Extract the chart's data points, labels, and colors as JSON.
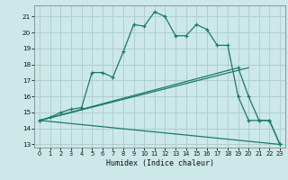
{
  "xlabel": "Humidex (Indice chaleur)",
  "background_color": "#cce8e8",
  "grid_color": "#aacccc",
  "line_color": "#1a7a6a",
  "xlim": [
    -0.5,
    23.5
  ],
  "ylim": [
    12.8,
    21.7
  ],
  "yticks": [
    13,
    14,
    15,
    16,
    17,
    18,
    19,
    20,
    21
  ],
  "xticks": [
    0,
    1,
    2,
    3,
    4,
    5,
    6,
    7,
    8,
    9,
    10,
    11,
    12,
    13,
    14,
    15,
    16,
    17,
    18,
    19,
    20,
    21,
    22,
    23
  ],
  "series1_x": [
    0,
    1,
    2,
    3,
    4,
    5,
    6,
    7,
    8,
    9,
    10,
    11,
    12,
    13,
    14,
    15,
    16,
    17,
    18,
    19,
    20,
    21,
    22,
    23
  ],
  "series1_y": [
    14.5,
    14.7,
    15.0,
    15.2,
    15.3,
    17.5,
    17.5,
    17.2,
    18.8,
    20.5,
    20.4,
    21.3,
    21.0,
    19.8,
    19.8,
    20.5,
    20.2,
    19.2,
    19.2,
    16.0,
    14.5,
    14.5,
    14.5,
    13.0
  ],
  "series2_x": [
    0,
    19,
    20,
    21,
    22,
    23
  ],
  "series2_y": [
    14.5,
    17.8,
    16.0,
    14.5,
    14.5,
    13.0
  ],
  "series3_x": [
    0,
    20
  ],
  "series3_y": [
    14.5,
    17.8
  ],
  "series4_x": [
    0,
    23
  ],
  "series4_y": [
    14.5,
    13.0
  ]
}
